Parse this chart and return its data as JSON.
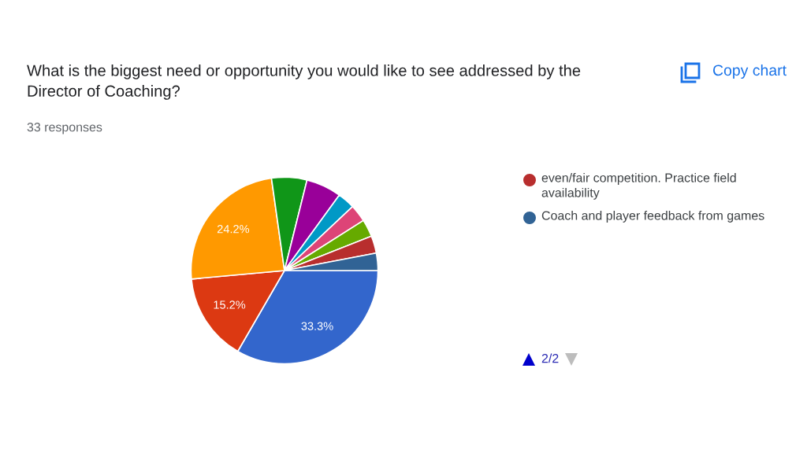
{
  "chart_data": {
    "type": "pie",
    "title": "What is the biggest need or opportunity you would like to see addressed by the Director of Coaching?",
    "annotations": [
      "33 responses",
      "Copy chart",
      "2/2"
    ],
    "categories": [
      null,
      null,
      null,
      null,
      null,
      null,
      null,
      null,
      "even/fair competition. Practice field availability",
      "Coach and player feedback from games"
    ],
    "values": [
      33.3,
      15.2,
      24.2,
      6.1,
      6.1,
      3.0,
      3.0,
      3.0,
      3.0,
      3.0
    ],
    "colors": [
      "#3366cc",
      "#dc3912",
      "#ff9900",
      "#109618",
      "#990099",
      "#0099c6",
      "#dd4477",
      "#66aa00",
      "#b82e2e",
      "#316395"
    ],
    "value_labels": [
      "33.3%",
      "15.2%",
      "24.2%",
      null,
      null,
      null,
      null,
      null,
      null,
      null
    ],
    "legend": "right"
  }
}
